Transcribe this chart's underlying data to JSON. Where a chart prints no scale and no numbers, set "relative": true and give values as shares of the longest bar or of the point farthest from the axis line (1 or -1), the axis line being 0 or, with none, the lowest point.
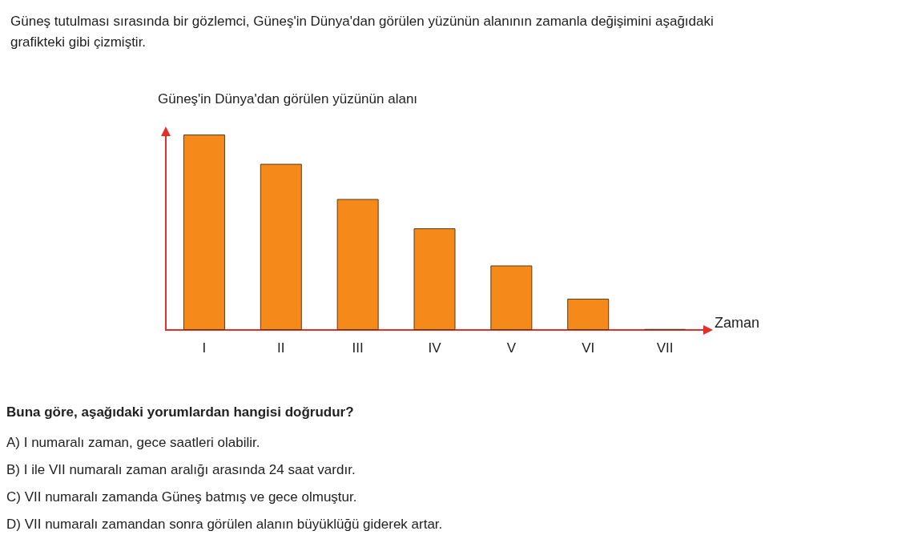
{
  "chart_data": {
    "type": "bar",
    "title": "Güneş tutulması sırasında bir gözlemci, Güneş'in Dünya'dan görülen yüzünün alanının zamanla değişimini aşağıdaki grafikteki gibi çizmiştir.",
    "ylabel": "Güneş'in Dünya'dan görülen yüzünün alanı",
    "xlabel": "Zaman",
    "relative": true,
    "categories": [
      "I",
      "II",
      "III",
      "IV",
      "V",
      "VI",
      "VII"
    ],
    "values": [
      1,
      0.85,
      0.67,
      0.52,
      0.33,
      0.16,
      0.005
    ],
    "color": "#f5891a",
    "annotations": [
      "Buna göre, aşağıdaki yorumlardan hangisi doğrudur?",
      "A) I numaralı zaman, gece saatleri olabilir.",
      "B) I ile VII numaralı zaman aralığı arasında 24 saat vardır.",
      "C) VII numaralı zamanda Güneş batmış ve gece olmuştur.",
      "D) VII numaralı zamandan sonra görülen alanın büyüklüğü giderek artar."
    ]
  }
}
